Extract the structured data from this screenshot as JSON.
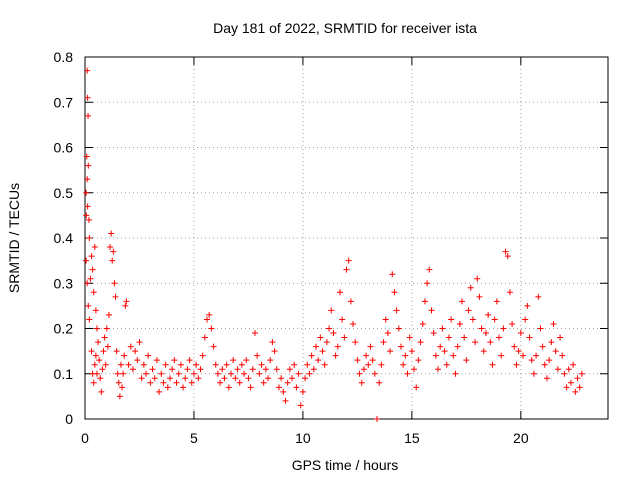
{
  "chart_data": {
    "type": "scatter",
    "title": "Day 181 of 2022, SRMTID for receiver ista",
    "xlabel": "GPS time / hours",
    "ylabel": "SRMTID / TECUs",
    "xlim": [
      0,
      24
    ],
    "ylim": [
      0,
      0.8
    ],
    "xticks": [
      0,
      5,
      10,
      15,
      20
    ],
    "yticks": [
      0,
      0.1,
      0.2,
      0.3,
      0.4,
      0.5,
      0.6,
      0.7,
      0.8
    ],
    "xtick_labels": [
      "0",
      "5",
      "10",
      "15",
      "20"
    ],
    "ytick_labels": [
      "0",
      "0.1",
      "0.2",
      "0.3",
      "0.4",
      "0.5",
      "0.6",
      "0.7",
      "0.8"
    ],
    "grid": true,
    "marker": "+",
    "color": "#ff0000",
    "series": [
      {
        "name": "SRMTID",
        "points": [
          [
            0.05,
            0.5
          ],
          [
            0.08,
            0.58
          ],
          [
            0.1,
            0.77
          ],
          [
            0.12,
            0.71
          ],
          [
            0.14,
            0.67
          ],
          [
            0.15,
            0.56
          ],
          [
            0.1,
            0.53
          ],
          [
            0.06,
            0.45
          ],
          [
            0.12,
            0.47
          ],
          [
            0.18,
            0.44
          ],
          [
            0.2,
            0.4
          ],
          [
            0.05,
            0.35
          ],
          [
            0.1,
            0.3
          ],
          [
            0.15,
            0.25
          ],
          [
            0.2,
            0.22
          ],
          [
            0.25,
            0.31
          ],
          [
            0.3,
            0.36
          ],
          [
            0.35,
            0.33
          ],
          [
            0.4,
            0.28
          ],
          [
            0.45,
            0.38
          ],
          [
            0.5,
            0.24
          ],
          [
            0.55,
            0.2
          ],
          [
            0.6,
            0.17
          ],
          [
            0.3,
            0.15
          ],
          [
            0.35,
            0.1
          ],
          [
            0.4,
            0.08
          ],
          [
            0.45,
            0.12
          ],
          [
            0.5,
            0.14
          ],
          [
            0.55,
            0.1
          ],
          [
            0.65,
            0.13
          ],
          [
            0.7,
            0.09
          ],
          [
            0.75,
            0.06
          ],
          [
            0.8,
            0.11
          ],
          [
            0.85,
            0.15
          ],
          [
            0.9,
            0.18
          ],
          [
            0.95,
            0.12
          ],
          [
            1.0,
            0.2
          ],
          [
            1.05,
            0.16
          ],
          [
            1.1,
            0.23
          ],
          [
            1.15,
            0.38
          ],
          [
            1.2,
            0.41
          ],
          [
            1.25,
            0.35
          ],
          [
            1.3,
            0.37
          ],
          [
            1.35,
            0.3
          ],
          [
            1.4,
            0.27
          ],
          [
            1.45,
            0.15
          ],
          [
            1.5,
            0.1
          ],
          [
            1.55,
            0.08
          ],
          [
            1.6,
            0.05
          ],
          [
            1.65,
            0.12
          ],
          [
            1.7,
            0.07
          ],
          [
            1.75,
            0.1
          ],
          [
            1.8,
            0.14
          ],
          [
            1.85,
            0.25
          ],
          [
            1.9,
            0.26
          ],
          [
            2.0,
            0.12
          ],
          [
            2.1,
            0.16
          ],
          [
            2.2,
            0.11
          ],
          [
            2.3,
            0.15
          ],
          [
            2.4,
            0.13
          ],
          [
            2.5,
            0.17
          ],
          [
            2.6,
            0.09
          ],
          [
            2.7,
            0.12
          ],
          [
            2.8,
            0.1
          ],
          [
            2.9,
            0.14
          ],
          [
            3.0,
            0.08
          ],
          [
            3.1,
            0.11
          ],
          [
            3.2,
            0.09
          ],
          [
            3.3,
            0.13
          ],
          [
            3.4,
            0.06
          ],
          [
            3.5,
            0.1
          ],
          [
            3.6,
            0.08
          ],
          [
            3.7,
            0.12
          ],
          [
            3.8,
            0.07
          ],
          [
            3.9,
            0.09
          ],
          [
            4.0,
            0.11
          ],
          [
            4.1,
            0.13
          ],
          [
            4.2,
            0.08
          ],
          [
            4.3,
            0.1
          ],
          [
            4.4,
            0.12
          ],
          [
            4.5,
            0.07
          ],
          [
            4.6,
            0.09
          ],
          [
            4.7,
            0.11
          ],
          [
            4.8,
            0.13
          ],
          [
            4.9,
            0.08
          ],
          [
            5.0,
            0.1
          ],
          [
            5.1,
            0.12
          ],
          [
            5.2,
            0.09
          ],
          [
            5.3,
            0.11
          ],
          [
            5.4,
            0.14
          ],
          [
            5.5,
            0.18
          ],
          [
            5.6,
            0.22
          ],
          [
            5.7,
            0.23
          ],
          [
            5.8,
            0.2
          ],
          [
            5.9,
            0.16
          ],
          [
            6.0,
            0.12
          ],
          [
            6.1,
            0.1
          ],
          [
            6.2,
            0.08
          ],
          [
            6.3,
            0.11
          ],
          [
            6.4,
            0.09
          ],
          [
            6.5,
            0.12
          ],
          [
            6.6,
            0.07
          ],
          [
            6.7,
            0.1
          ],
          [
            6.8,
            0.13
          ],
          [
            6.9,
            0.09
          ],
          [
            7.0,
            0.11
          ],
          [
            7.1,
            0.08
          ],
          [
            7.2,
            0.12
          ],
          [
            7.3,
            0.1
          ],
          [
            7.4,
            0.13
          ],
          [
            7.5,
            0.09
          ],
          [
            7.6,
            0.07
          ],
          [
            7.7,
            0.11
          ],
          [
            7.8,
            0.19
          ],
          [
            7.9,
            0.14
          ],
          [
            8.0,
            0.1
          ],
          [
            8.1,
            0.12
          ],
          [
            8.2,
            0.08
          ],
          [
            8.3,
            0.11
          ],
          [
            8.4,
            0.09
          ],
          [
            8.5,
            0.13
          ],
          [
            8.6,
            0.17
          ],
          [
            8.7,
            0.15
          ],
          [
            8.8,
            0.11
          ],
          [
            8.9,
            0.07
          ],
          [
            9.0,
            0.09
          ],
          [
            9.1,
            0.06
          ],
          [
            9.2,
            0.04
          ],
          [
            9.3,
            0.08
          ],
          [
            9.4,
            0.11
          ],
          [
            9.5,
            0.09
          ],
          [
            9.6,
            0.12
          ],
          [
            9.7,
            0.07
          ],
          [
            9.8,
            0.1
          ],
          [
            9.9,
            0.03
          ],
          [
            10.0,
            0.06
          ],
          [
            10.1,
            0.09
          ],
          [
            10.2,
            0.12
          ],
          [
            10.3,
            0.1
          ],
          [
            10.4,
            0.14
          ],
          [
            10.5,
            0.11
          ],
          [
            10.6,
            0.16
          ],
          [
            10.7,
            0.13
          ],
          [
            10.8,
            0.18
          ],
          [
            10.9,
            0.15
          ],
          [
            11.0,
            0.12
          ],
          [
            11.1,
            0.17
          ],
          [
            11.2,
            0.2
          ],
          [
            11.3,
            0.24
          ],
          [
            11.4,
            0.19
          ],
          [
            11.5,
            0.14
          ],
          [
            11.6,
            0.16
          ],
          [
            11.7,
            0.28
          ],
          [
            11.8,
            0.22
          ],
          [
            11.9,
            0.18
          ],
          [
            12.0,
            0.33
          ],
          [
            12.1,
            0.35
          ],
          [
            12.2,
            0.26
          ],
          [
            12.3,
            0.21
          ],
          [
            12.4,
            0.17
          ],
          [
            12.5,
            0.13
          ],
          [
            12.6,
            0.1
          ],
          [
            12.7,
            0.08
          ],
          [
            12.8,
            0.11
          ],
          [
            12.9,
            0.14
          ],
          [
            13.0,
            0.12
          ],
          [
            13.1,
            0.16
          ],
          [
            13.2,
            0.13
          ],
          [
            13.3,
            0.1
          ],
          [
            13.4,
            0.0
          ],
          [
            13.5,
            0.08
          ],
          [
            13.6,
            0.12
          ],
          [
            13.7,
            0.17
          ],
          [
            13.8,
            0.22
          ],
          [
            13.9,
            0.19
          ],
          [
            14.0,
            0.15
          ],
          [
            14.1,
            0.32
          ],
          [
            14.2,
            0.28
          ],
          [
            14.3,
            0.24
          ],
          [
            14.4,
            0.2
          ],
          [
            14.5,
            0.16
          ],
          [
            14.6,
            0.12
          ],
          [
            14.7,
            0.14
          ],
          [
            14.8,
            0.1
          ],
          [
            14.9,
            0.18
          ],
          [
            15.0,
            0.15
          ],
          [
            15.1,
            0.11
          ],
          [
            15.2,
            0.07
          ],
          [
            15.3,
            0.13
          ],
          [
            15.4,
            0.17
          ],
          [
            15.5,
            0.21
          ],
          [
            15.6,
            0.26
          ],
          [
            15.7,
            0.3
          ],
          [
            15.8,
            0.33
          ],
          [
            15.9,
            0.24
          ],
          [
            16.0,
            0.19
          ],
          [
            16.1,
            0.14
          ],
          [
            16.2,
            0.11
          ],
          [
            16.3,
            0.16
          ],
          [
            16.4,
            0.2
          ],
          [
            16.5,
            0.15
          ],
          [
            16.6,
            0.12
          ],
          [
            16.7,
            0.18
          ],
          [
            16.8,
            0.22
          ],
          [
            16.9,
            0.14
          ],
          [
            17.0,
            0.1
          ],
          [
            17.1,
            0.16
          ],
          [
            17.2,
            0.21
          ],
          [
            17.3,
            0.26
          ],
          [
            17.4,
            0.18
          ],
          [
            17.5,
            0.13
          ],
          [
            17.6,
            0.24
          ],
          [
            17.7,
            0.29
          ],
          [
            17.8,
            0.22
          ],
          [
            17.9,
            0.17
          ],
          [
            18.0,
            0.31
          ],
          [
            18.1,
            0.27
          ],
          [
            18.2,
            0.2
          ],
          [
            18.3,
            0.15
          ],
          [
            18.4,
            0.19
          ],
          [
            18.5,
            0.23
          ],
          [
            18.6,
            0.17
          ],
          [
            18.7,
            0.12
          ],
          [
            18.8,
            0.22
          ],
          [
            18.9,
            0.26
          ],
          [
            19.0,
            0.18
          ],
          [
            19.1,
            0.14
          ],
          [
            19.2,
            0.2
          ],
          [
            19.3,
            0.37
          ],
          [
            19.4,
            0.36
          ],
          [
            19.5,
            0.28
          ],
          [
            19.6,
            0.21
          ],
          [
            19.7,
            0.16
          ],
          [
            19.8,
            0.12
          ],
          [
            19.9,
            0.15
          ],
          [
            20.0,
            0.19
          ],
          [
            20.1,
            0.14
          ],
          [
            20.2,
            0.22
          ],
          [
            20.3,
            0.25
          ],
          [
            20.4,
            0.18
          ],
          [
            20.5,
            0.13
          ],
          [
            20.6,
            0.1
          ],
          [
            20.7,
            0.14
          ],
          [
            20.8,
            0.27
          ],
          [
            20.9,
            0.2
          ],
          [
            21.0,
            0.16
          ],
          [
            21.1,
            0.12
          ],
          [
            21.2,
            0.09
          ],
          [
            21.3,
            0.13
          ],
          [
            21.4,
            0.17
          ],
          [
            21.5,
            0.21
          ],
          [
            21.6,
            0.15
          ],
          [
            21.7,
            0.11
          ],
          [
            21.8,
            0.18
          ],
          [
            21.9,
            0.14
          ],
          [
            22.0,
            0.1
          ],
          [
            22.1,
            0.07
          ],
          [
            22.2,
            0.11
          ],
          [
            22.3,
            0.08
          ],
          [
            22.4,
            0.12
          ],
          [
            22.5,
            0.06
          ],
          [
            22.6,
            0.09
          ],
          [
            22.7,
            0.07
          ],
          [
            22.8,
            0.1
          ]
        ]
      }
    ]
  }
}
